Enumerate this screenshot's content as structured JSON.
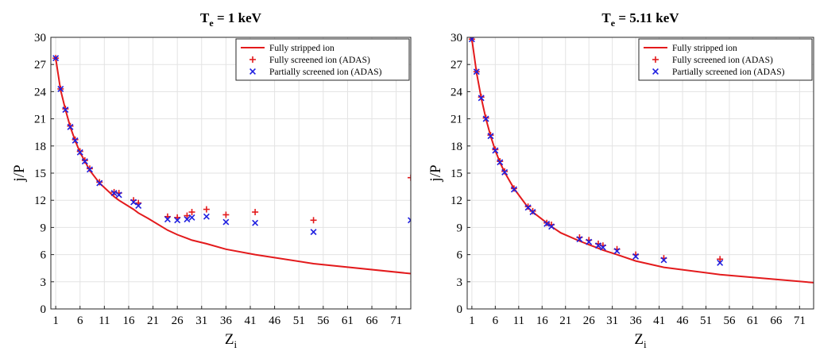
{
  "chart_data": [
    {
      "type": "line",
      "title": "T_e = 1 keV",
      "title_parts": {
        "main": "T",
        "sub": "e",
        "rest": " = 1 keV"
      },
      "xlabel": "Z_i",
      "xlabel_parts": {
        "main": "Z",
        "sub": "i"
      },
      "ylabel": "j/P",
      "xlim": [
        0,
        74
      ],
      "ylim": [
        0,
        30
      ],
      "xticks": [
        1,
        6,
        11,
        16,
        21,
        26,
        31,
        36,
        41,
        46,
        51,
        56,
        61,
        66,
        71
      ],
      "yticks": [
        0,
        3,
        6,
        9,
        12,
        15,
        18,
        21,
        24,
        27,
        30
      ],
      "grid": true,
      "legend_position": "top-right",
      "series": [
        {
          "name": "Fully stripped ion",
          "style": "line",
          "color": "#e31a1c",
          "x": [
            1,
            2,
            3,
            4,
            5,
            6,
            7,
            8,
            10,
            13,
            14,
            17,
            18,
            20,
            24,
            26,
            28,
            29,
            32,
            36,
            42,
            54,
            74
          ],
          "y": [
            27.7,
            24.2,
            22.0,
            20.1,
            18.6,
            17.3,
            16.3,
            15.3,
            13.9,
            12.4,
            12.0,
            11.0,
            10.6,
            10.0,
            8.7,
            8.2,
            7.8,
            7.6,
            7.2,
            6.6,
            6.0,
            5.0,
            3.9
          ]
        },
        {
          "name": "Fully screened ion (ADAS)",
          "style": "plus",
          "color": "#e31a1c",
          "x": [
            1,
            2,
            3,
            4,
            5,
            6,
            7,
            8,
            10,
            13,
            14,
            17,
            18,
            24,
            26,
            28,
            29,
            32,
            36,
            42,
            54,
            74
          ],
          "y": [
            27.7,
            24.3,
            22.1,
            20.2,
            18.7,
            17.4,
            16.4,
            15.5,
            14.0,
            12.9,
            12.8,
            12.0,
            11.7,
            10.2,
            10.1,
            10.3,
            10.7,
            11.0,
            10.4,
            10.7,
            9.8,
            14.5
          ]
        },
        {
          "name": "Partially screened ion (ADAS)",
          "style": "x",
          "color": "#1f1fe0",
          "x": [
            1,
            2,
            3,
            4,
            5,
            6,
            7,
            8,
            10,
            13,
            14,
            17,
            18,
            24,
            26,
            28,
            29,
            32,
            36,
            42,
            54,
            74
          ],
          "y": [
            27.7,
            24.3,
            22.0,
            20.1,
            18.6,
            17.3,
            16.3,
            15.4,
            13.9,
            12.8,
            12.6,
            11.8,
            11.4,
            9.9,
            9.8,
            9.9,
            10.1,
            10.2,
            9.6,
            9.5,
            8.5,
            9.8
          ]
        }
      ]
    },
    {
      "type": "line",
      "title": "T_e = 5.11 keV",
      "title_parts": {
        "main": "T",
        "sub": "e",
        "rest": " = 5.11 keV"
      },
      "xlabel": "Z_i",
      "xlabel_parts": {
        "main": "Z",
        "sub": "i"
      },
      "ylabel": "j/P",
      "xlim": [
        0,
        74
      ],
      "ylim": [
        0,
        30
      ],
      "xticks": [
        1,
        6,
        11,
        16,
        21,
        26,
        31,
        36,
        41,
        46,
        51,
        56,
        61,
        66,
        71
      ],
      "yticks": [
        0,
        3,
        6,
        9,
        12,
        15,
        18,
        21,
        24,
        27,
        30
      ],
      "grid": true,
      "legend_position": "top-right",
      "series": [
        {
          "name": "Fully stripped ion",
          "style": "line",
          "color": "#e31a1c",
          "x": [
            1,
            2,
            3,
            4,
            5,
            6,
            7,
            8,
            10,
            13,
            14,
            17,
            18,
            20,
            24,
            26,
            28,
            29,
            32,
            36,
            42,
            54,
            74
          ],
          "y": [
            29.8,
            26.1,
            23.3,
            21.0,
            19.1,
            17.5,
            16.2,
            15.1,
            13.3,
            11.2,
            10.7,
            9.5,
            9.1,
            8.4,
            7.5,
            7.1,
            6.7,
            6.5,
            6.0,
            5.3,
            4.6,
            3.8,
            2.9
          ]
        },
        {
          "name": "Fully screened ion (ADAS)",
          "style": "plus",
          "color": "#e31a1c",
          "x": [
            1,
            2,
            3,
            4,
            5,
            6,
            7,
            8,
            10,
            13,
            14,
            17,
            18,
            24,
            26,
            28,
            29,
            32,
            36,
            42,
            54
          ],
          "y": [
            29.8,
            26.2,
            23.4,
            21.1,
            19.2,
            17.6,
            16.3,
            15.2,
            13.3,
            11.3,
            10.8,
            9.5,
            9.3,
            7.9,
            7.6,
            7.2,
            7.0,
            6.6,
            6.0,
            5.6,
            5.5
          ]
        },
        {
          "name": "Partially screened ion (ADAS)",
          "style": "x",
          "color": "#1f1fe0",
          "x": [
            1,
            2,
            3,
            4,
            5,
            6,
            7,
            8,
            10,
            13,
            14,
            17,
            18,
            24,
            26,
            28,
            29,
            32,
            36,
            42,
            54
          ],
          "y": [
            29.8,
            26.2,
            23.3,
            21.0,
            19.1,
            17.5,
            16.2,
            15.1,
            13.2,
            11.2,
            10.7,
            9.4,
            9.1,
            7.7,
            7.4,
            7.0,
            6.8,
            6.4,
            5.8,
            5.4,
            5.1
          ]
        }
      ]
    }
  ]
}
